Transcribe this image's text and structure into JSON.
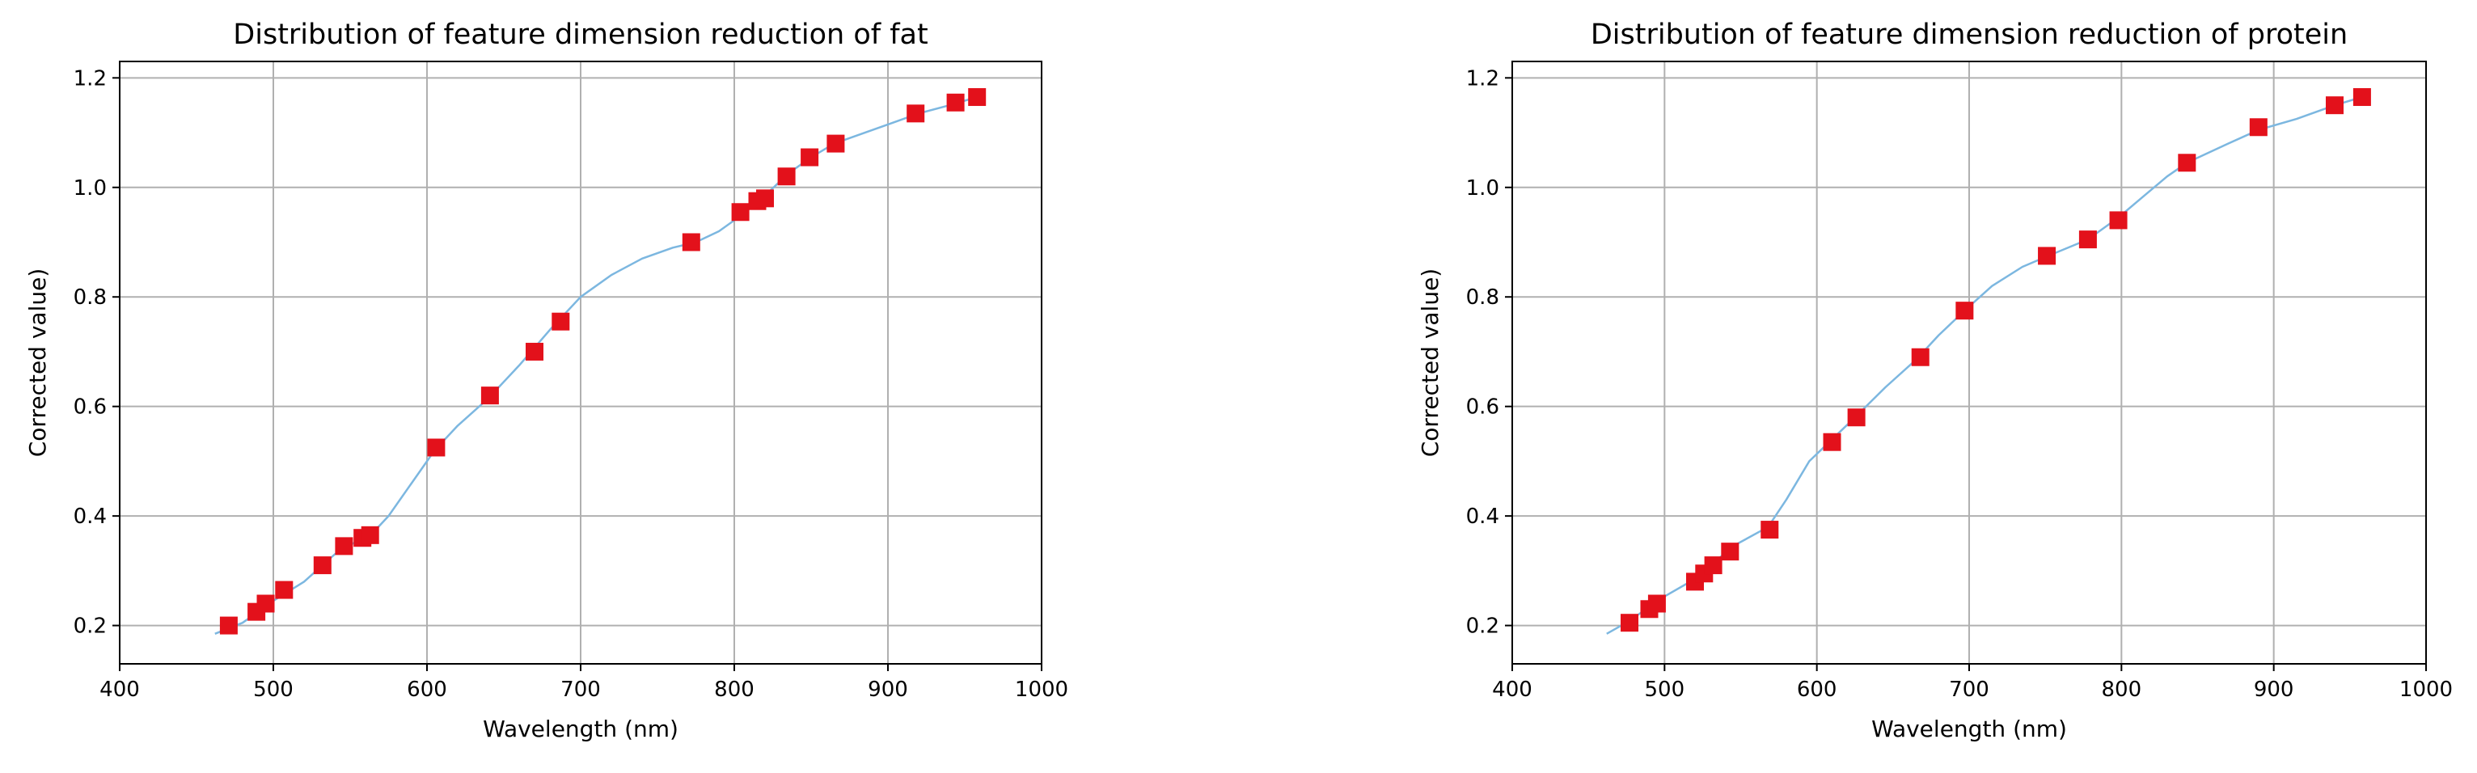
{
  "colors": {
    "marker": "#e3111b",
    "curve": "#7cb7e0",
    "grid": "#b0b0b0",
    "axis": "#000000"
  },
  "chart_data": [
    {
      "type": "scatter",
      "title": "Distribution of feature dimension reduction of fat",
      "xlabel": "Wavelength (nm)",
      "ylabel": "Corrected value)",
      "xlim": [
        400,
        1000
      ],
      "ylim": [
        0.13,
        1.23
      ],
      "xticks": [
        400,
        500,
        600,
        700,
        800,
        900,
        1000
      ],
      "yticks": [
        "0.2",
        "0.4",
        "0.6",
        "0.8",
        "1.0",
        "1.2"
      ],
      "grid": true,
      "series": [
        {
          "kind": "line",
          "x": [
            462,
            480,
            500,
            520,
            540,
            555,
            565,
            575,
            590,
            605,
            620,
            640,
            660,
            680,
            700,
            720,
            740,
            760,
            775,
            790,
            805,
            820,
            835,
            850,
            865,
            880,
            900,
            920,
            940,
            958
          ],
          "y": [
            0.185,
            0.205,
            0.245,
            0.28,
            0.33,
            0.355,
            0.37,
            0.4,
            0.46,
            0.52,
            0.565,
            0.615,
            0.675,
            0.74,
            0.8,
            0.84,
            0.87,
            0.89,
            0.9,
            0.92,
            0.95,
            0.985,
            1.025,
            1.055,
            1.08,
            1.095,
            1.115,
            1.135,
            1.15,
            1.165
          ]
        },
        {
          "kind": "markers",
          "x": [
            471,
            489,
            495,
            507,
            532,
            546,
            558,
            563,
            606,
            641,
            670,
            687,
            772,
            804,
            815,
            820,
            834,
            849,
            866,
            918,
            944,
            958
          ],
          "y": [
            0.2,
            0.225,
            0.24,
            0.265,
            0.31,
            0.345,
            0.36,
            0.365,
            0.525,
            0.62,
            0.7,
            0.755,
            0.9,
            0.955,
            0.975,
            0.98,
            1.02,
            1.055,
            1.08,
            1.135,
            1.155,
            1.165
          ]
        }
      ]
    },
    {
      "type": "scatter",
      "title": "Distribution of feature dimension reduction of protein",
      "xlabel": "Wavelength (nm)",
      "ylabel": "Corrected value)",
      "xlim": [
        400,
        1000
      ],
      "ylim": [
        0.13,
        1.23
      ],
      "xticks": [
        400,
        500,
        600,
        700,
        800,
        900,
        1000
      ],
      "yticks": [
        "0.2",
        "0.4",
        "0.6",
        "0.8",
        "1.0",
        "1.2"
      ],
      "grid": true,
      "series": [
        {
          "kind": "line",
          "x": [
            462,
            478,
            495,
            520,
            545,
            568,
            580,
            595,
            610,
            625,
            645,
            665,
            680,
            697,
            715,
            735,
            752,
            778,
            798,
            815,
            830,
            843,
            870,
            890,
            915,
            940,
            958
          ],
          "y": [
            0.185,
            0.21,
            0.245,
            0.285,
            0.345,
            0.38,
            0.43,
            0.5,
            0.54,
            0.58,
            0.635,
            0.685,
            0.73,
            0.775,
            0.82,
            0.855,
            0.875,
            0.905,
            0.945,
            0.985,
            1.02,
            1.045,
            1.08,
            1.105,
            1.125,
            1.15,
            1.165
          ]
        },
        {
          "kind": "markers",
          "x": [
            477,
            490,
            495,
            520,
            526,
            532,
            543,
            569,
            610,
            626,
            668,
            697,
            751,
            778,
            798,
            843,
            890,
            940,
            958
          ],
          "y": [
            0.205,
            0.23,
            0.24,
            0.28,
            0.295,
            0.31,
            0.335,
            0.375,
            0.535,
            0.58,
            0.69,
            0.775,
            0.875,
            0.905,
            0.94,
            1.045,
            1.11,
            1.15,
            1.165
          ]
        }
      ]
    }
  ]
}
